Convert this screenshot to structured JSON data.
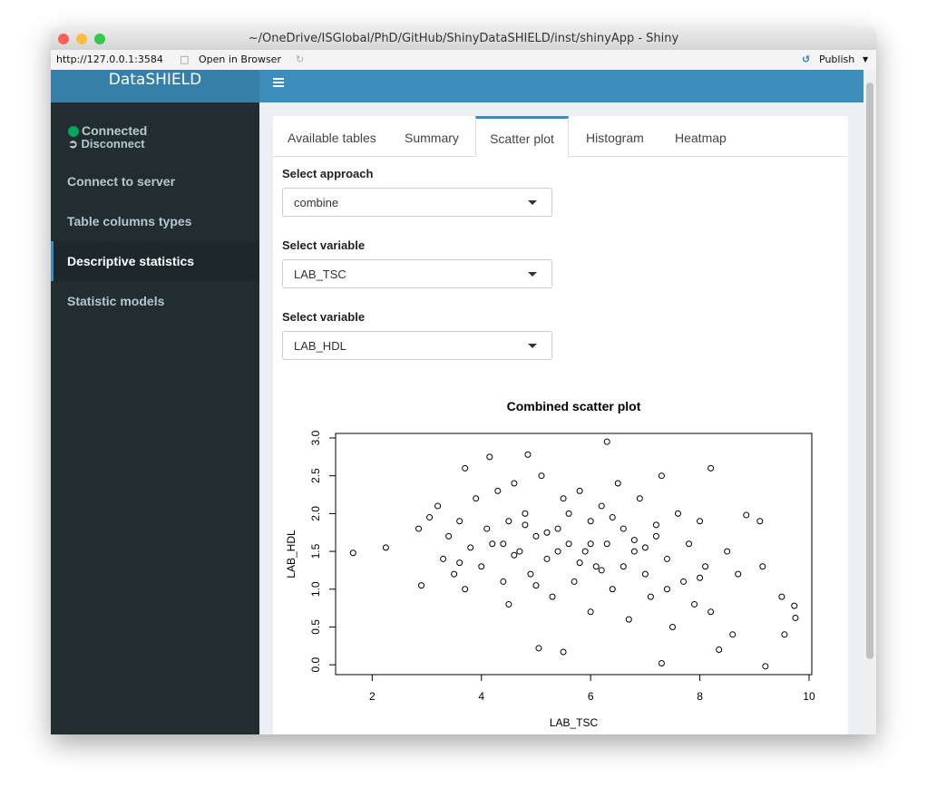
{
  "window": {
    "title": "~/OneDrive/ISGlobal/PhD/GitHub/ShinyDataSHIELD/inst/shinyApp - Shiny"
  },
  "toolbar": {
    "url": "http://127.0.0.1:3584",
    "open_in_browser": "Open in Browser",
    "publish": "Publish"
  },
  "sidebar": {
    "brand": "DataSHIELD",
    "status": "Connected",
    "disconnect": "Disconnect",
    "menu": [
      "Connect to server",
      "Table columns types",
      "Descriptive statistics",
      "Statistic models"
    ],
    "active": 2
  },
  "tabs": {
    "items": [
      "Available tables",
      "Summary",
      "Scatter plot",
      "Histogram",
      "Heatmap"
    ],
    "active": 2
  },
  "form": [
    {
      "label": "Select approach",
      "value": "combine"
    },
    {
      "label": "Select variable",
      "value": "LAB_TSC"
    },
    {
      "label": "Select variable",
      "value": "LAB_HDL"
    }
  ],
  "chart_data": {
    "type": "scatter",
    "title": "Combined scatter plot",
    "xlabel": "LAB_TSC",
    "ylabel": "LAB_HDL",
    "color": "#000000",
    "x": [
      1.65,
      2.25,
      2.85,
      2.9,
      3.05,
      3.2,
      3.3,
      3.4,
      3.5,
      3.6,
      3.7,
      3.7,
      3.8,
      3.9,
      4.0,
      4.1,
      4.15,
      4.2,
      4.3,
      4.4,
      4.5,
      4.5,
      4.6,
      4.7,
      4.8,
      4.85,
      4.9,
      5.0,
      5.05,
      5.1,
      5.2,
      5.3,
      5.4,
      5.5,
      5.5,
      5.6,
      5.7,
      5.8,
      5.9,
      6.0,
      6.0,
      6.1,
      6.2,
      6.3,
      6.3,
      6.4,
      6.5,
      6.6,
      6.7,
      6.8,
      6.9,
      7.0,
      7.1,
      7.2,
      7.3,
      7.3,
      7.4,
      7.5,
      7.6,
      7.7,
      7.8,
      7.9,
      8.0,
      8.1,
      8.2,
      8.2,
      8.35,
      8.5,
      8.6,
      8.7,
      8.85,
      9.1,
      9.15,
      9.2,
      9.5,
      9.55,
      9.73,
      9.75,
      4.6,
      5.2,
      5.8,
      6.4,
      7.0,
      5.0,
      6.2,
      5.6,
      6.8,
      4.4,
      7.4,
      3.6,
      8.0,
      5.4,
      6.6,
      4.8,
      7.2,
      6.0
    ],
    "y": [
      1.48,
      1.55,
      1.8,
      1.05,
      1.95,
      2.1,
      1.4,
      1.7,
      1.2,
      1.9,
      2.6,
      1.0,
      1.55,
      2.2,
      1.3,
      1.8,
      2.75,
      1.6,
      2.3,
      1.1,
      1.9,
      0.8,
      2.4,
      1.5,
      2.0,
      2.78,
      1.2,
      1.7,
      0.22,
      2.5,
      1.4,
      0.9,
      1.8,
      0.17,
      2.2,
      1.6,
      1.1,
      2.3,
      1.5,
      1.9,
      0.7,
      1.3,
      2.1,
      2.95,
      1.6,
      1.0,
      2.4,
      1.8,
      0.6,
      1.5,
      2.2,
      1.2,
      0.9,
      1.7,
      0.02,
      2.5,
      1.4,
      0.5,
      2.0,
      1.1,
      1.6,
      0.8,
      1.9,
      1.3,
      2.6,
      0.7,
      0.2,
      1.5,
      0.4,
      1.2,
      1.98,
      1.9,
      1.3,
      -0.02,
      0.9,
      0.4,
      0.78,
      0.62,
      1.45,
      1.75,
      1.35,
      1.95,
      1.55,
      1.05,
      1.25,
      2.0,
      1.65,
      1.6,
      1.0,
      1.35,
      1.15,
      1.5,
      1.3,
      1.85,
      1.85,
      1.6
    ],
    "xlim": [
      1.33,
      10.05
    ],
    "ylim": [
      -0.13,
      3.06
    ],
    "xticks": [
      2,
      4,
      6,
      8,
      10
    ],
    "yticks": [
      {
        "value": 0,
        "label": "0.0"
      },
      0.5,
      {
        "value": 1,
        "label": "1.0"
      },
      1.5,
      {
        "value": 2,
        "label": "2.0"
      },
      2.5,
      {
        "value": 3,
        "label": "3.0"
      }
    ]
  }
}
